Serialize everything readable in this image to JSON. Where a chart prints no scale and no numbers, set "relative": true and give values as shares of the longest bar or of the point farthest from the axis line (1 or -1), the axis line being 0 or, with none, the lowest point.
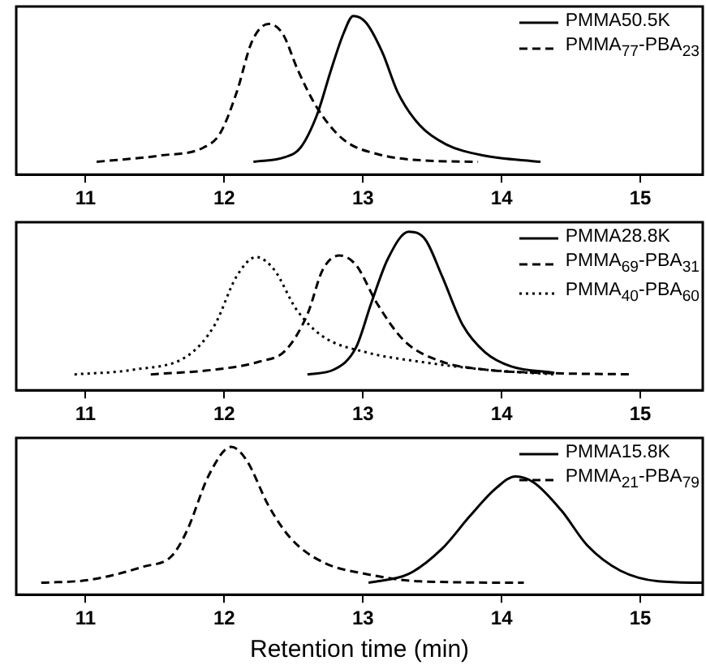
{
  "chart_data": [
    {
      "type": "line",
      "relative": true,
      "xlim": [
        10.5,
        15.45
      ],
      "xticks": [
        11,
        12,
        13,
        14,
        15
      ],
      "tick_labels": "x",
      "legend": "top right",
      "series": [
        {
          "name": "PMMA50.5K",
          "color": "#000000",
          "line_style": "solid",
          "x": [
            12.21,
            12.44,
            12.55,
            12.67,
            12.77,
            12.86,
            12.93,
            13.02,
            13.14,
            13.25,
            13.41,
            13.6,
            13.87,
            14.28
          ],
          "values": [
            0.08,
            0.11,
            0.17,
            0.38,
            0.66,
            0.89,
            1.0,
            0.96,
            0.77,
            0.52,
            0.31,
            0.19,
            0.12,
            0.08
          ]
        },
        {
          "name": "PMMA$_{77}$-PBA$_{23}$",
          "color": "#000000",
          "line_style": "dashed",
          "x": [
            11.08,
            11.54,
            11.85,
            11.97,
            12.09,
            12.2,
            12.32,
            12.42,
            12.53,
            12.67,
            12.86,
            13.1,
            13.41,
            13.83
          ],
          "values": [
            0.08,
            0.12,
            0.17,
            0.26,
            0.52,
            0.84,
            0.95,
            0.89,
            0.66,
            0.42,
            0.22,
            0.13,
            0.09,
            0.08
          ]
        }
      ]
    },
    {
      "type": "line",
      "relative": true,
      "xlim": [
        10.5,
        15.45
      ],
      "xticks": [
        11,
        12,
        13,
        14,
        15
      ],
      "tick_labels": "x",
      "legend": "top right",
      "series": [
        {
          "name": "PMMA28.8K",
          "color": "#000000",
          "line_style": "solid",
          "x": [
            12.6,
            12.79,
            12.95,
            13.06,
            13.18,
            13.33,
            13.45,
            13.57,
            13.72,
            13.88,
            14.07,
            14.38
          ],
          "values": [
            0.1,
            0.13,
            0.27,
            0.55,
            0.83,
            1.0,
            0.95,
            0.72,
            0.41,
            0.24,
            0.15,
            0.11
          ]
        },
        {
          "name": "PMMA$_{69}$-PBA$_{31}$",
          "color": "#000000",
          "line_style": "dashed",
          "x": [
            11.47,
            11.93,
            12.25,
            12.44,
            12.6,
            12.71,
            12.83,
            12.95,
            13.1,
            13.3,
            13.57,
            13.88,
            14.27,
            14.95
          ],
          "values": [
            0.1,
            0.13,
            0.18,
            0.25,
            0.48,
            0.76,
            0.85,
            0.79,
            0.55,
            0.31,
            0.18,
            0.13,
            0.11,
            0.1
          ]
        },
        {
          "name": "PMMA$_{40}$-PBA$_{60}$",
          "color": "#000000",
          "line_style": "dotted",
          "x": [
            10.92,
            11.35,
            11.74,
            11.93,
            12.09,
            12.23,
            12.36,
            12.52,
            12.71,
            13.02,
            13.41,
            13.88,
            14.38
          ],
          "values": [
            0.1,
            0.13,
            0.22,
            0.41,
            0.72,
            0.84,
            0.76,
            0.51,
            0.34,
            0.24,
            0.18,
            0.13,
            0.1
          ]
        }
      ]
    },
    {
      "type": "line",
      "relative": true,
      "xlim": [
        10.5,
        15.45
      ],
      "xticks": [
        11,
        12,
        13,
        14,
        15
      ],
      "tick_labels": "x",
      "legend": "top right",
      "xlabel": "Retention time (min)",
      "series": [
        {
          "name": "PMMA15.8K",
          "color": "#000000",
          "line_style": "solid",
          "x": [
            13.04,
            13.33,
            13.57,
            13.77,
            13.96,
            14.1,
            14.23,
            14.43,
            14.62,
            14.86,
            15.13,
            15.45
          ],
          "values": [
            0.08,
            0.14,
            0.31,
            0.53,
            0.72,
            0.8,
            0.76,
            0.57,
            0.33,
            0.16,
            0.09,
            0.08
          ]
        },
        {
          "name": "PMMA$_{21}$-PBA$_{79}$",
          "color": "#000000",
          "line_style": "dashed",
          "x": [
            10.68,
            11.03,
            11.42,
            11.62,
            11.73,
            11.89,
            12.05,
            12.16,
            12.32,
            12.48,
            12.71,
            13.02,
            13.41,
            14.16
          ],
          "values": [
            0.08,
            0.1,
            0.19,
            0.26,
            0.43,
            0.81,
            1.0,
            0.91,
            0.6,
            0.38,
            0.22,
            0.14,
            0.09,
            0.08
          ]
        }
      ]
    }
  ]
}
